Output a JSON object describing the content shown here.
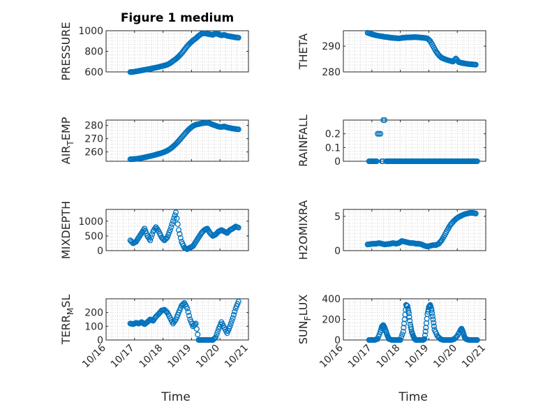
{
  "chart_data": [
    {
      "type": "scatter",
      "title": "Figure 1 medium",
      "ylabel": "PRESSURE",
      "xlabel": "",
      "ylim": [
        600,
        1000
      ],
      "yticks": [
        600,
        800,
        1000
      ],
      "xlim": [
        16,
        21
      ],
      "x": [
        16.85,
        16.95,
        17.05,
        17.15,
        17.25,
        17.35,
        17.45,
        17.55,
        17.65,
        17.75,
        17.85,
        17.95,
        18.05,
        18.15,
        18.25,
        18.35,
        18.45,
        18.55,
        18.65,
        18.75,
        18.85,
        18.95,
        19.05,
        19.15,
        19.25,
        19.35,
        19.45,
        19.55,
        19.65,
        19.75,
        19.85,
        19.95,
        20.05,
        20.15,
        20.25,
        20.35,
        20.45,
        20.55,
        20.65
      ],
      "y": [
        598,
        600,
        605,
        610,
        615,
        620,
        625,
        630,
        636,
        642,
        648,
        655,
        662,
        670,
        685,
        705,
        725,
        750,
        780,
        815,
        850,
        880,
        905,
        925,
        950,
        970,
        975,
        970,
        965,
        960,
        975,
        965,
        955,
        960,
        950,
        945,
        940,
        935,
        932
      ]
    },
    {
      "type": "scatter",
      "title": "",
      "ylabel": "THETA",
      "xlabel": "",
      "ylim": [
        280,
        296
      ],
      "yticks": [
        280,
        290
      ],
      "xlim": [
        16,
        21
      ],
      "x": [
        16.85,
        16.95,
        17.05,
        17.15,
        17.25,
        17.35,
        17.45,
        17.55,
        17.65,
        17.75,
        17.85,
        17.95,
        18.05,
        18.15,
        18.25,
        18.35,
        18.45,
        18.55,
        18.65,
        18.75,
        18.85,
        18.95,
        19.05,
        19.15,
        19.25,
        19.35,
        19.45,
        19.55,
        19.65,
        19.75,
        19.85,
        19.95,
        20.05,
        20.15,
        20.25,
        20.35,
        20.45,
        20.55,
        20.65
      ],
      "y": [
        295.2,
        294.8,
        294.5,
        294.2,
        294.0,
        293.8,
        293.6,
        293.5,
        293.3,
        293.2,
        293.1,
        293.0,
        293.2,
        293.3,
        293.4,
        293.4,
        293.5,
        293.5,
        293.4,
        293.3,
        293.2,
        293.0,
        292.0,
        290.0,
        288.0,
        286.5,
        285.5,
        285.0,
        284.6,
        284.3,
        284.0,
        285.2,
        283.8,
        283.5,
        283.3,
        283.1,
        283.0,
        282.9,
        282.8
      ]
    },
    {
      "type": "scatter",
      "title": "",
      "ylabel": "AIR_TEMP",
      "ylabel_main": "AIR",
      "ylabel_sub": "T",
      "ylabel_rest": "EMP",
      "xlabel": "",
      "ylim": [
        253,
        284
      ],
      "yticks": [
        260,
        270,
        280
      ],
      "xlim": [
        16,
        21
      ],
      "x": [
        16.85,
        16.95,
        17.05,
        17.15,
        17.25,
        17.35,
        17.45,
        17.55,
        17.65,
        17.75,
        17.85,
        17.95,
        18.05,
        18.15,
        18.25,
        18.35,
        18.45,
        18.55,
        18.65,
        18.75,
        18.85,
        18.95,
        19.05,
        19.15,
        19.25,
        19.35,
        19.45,
        19.55,
        19.65,
        19.75,
        19.85,
        19.95,
        20.05,
        20.15,
        20.25,
        20.35,
        20.45,
        20.55,
        20.65
      ],
      "y": [
        254.5,
        254.6,
        254.8,
        255.1,
        255.5,
        255.9,
        256.4,
        256.9,
        257.4,
        258.0,
        258.6,
        259.2,
        260.0,
        261.0,
        262.3,
        264.0,
        266.0,
        268.3,
        270.8,
        273.3,
        275.8,
        277.8,
        279.5,
        280.5,
        281.0,
        281.5,
        281.8,
        282.0,
        281.5,
        280.5,
        279.8,
        279.0,
        278.8,
        279.2,
        278.5,
        278.0,
        277.6,
        277.3,
        277.0
      ]
    },
    {
      "type": "scatter",
      "title": "",
      "ylabel": "RAINFALL",
      "xlabel": "",
      "ylim": [
        0,
        0.3
      ],
      "yticks": [
        0,
        0.1,
        0.2
      ],
      "yticklabels": [
        "0",
        "0.1",
        "0.2"
      ],
      "xlim": [
        16,
        21
      ],
      "x": [
        16.9,
        17.0,
        17.1,
        17.2,
        17.25,
        17.3,
        17.35,
        17.4,
        17.45,
        17.5,
        17.55,
        17.6,
        17.7,
        17.8,
        17.9,
        18.0,
        18.1,
        18.2,
        18.3,
        18.4,
        18.5,
        18.6,
        18.7,
        18.8,
        18.9,
        19.0,
        19.1,
        19.2,
        19.3,
        19.4,
        19.5,
        19.6,
        19.7,
        19.8,
        19.9,
        20.0,
        20.1,
        20.2,
        20.3,
        20.4,
        20.5,
        20.6,
        20.7
      ],
      "y": [
        0,
        0,
        0,
        0.2,
        0.2,
        0.2,
        0,
        0.3,
        0.3,
        0,
        0,
        0,
        0,
        0,
        0,
        0,
        0,
        0,
        0,
        0,
        0,
        0,
        0,
        0,
        0,
        0,
        0,
        0,
        0,
        0,
        0,
        0,
        0,
        0,
        0,
        0,
        0,
        0,
        0,
        0,
        0,
        0,
        0
      ]
    },
    {
      "type": "scatter",
      "title": "",
      "ylabel": "MIXDEPTH",
      "xlabel": "",
      "ylim": [
        0,
        1400
      ],
      "yticks": [
        0,
        500,
        1000
      ],
      "xlim": [
        16,
        21
      ],
      "x": [
        16.85,
        16.95,
        17.05,
        17.15,
        17.25,
        17.35,
        17.45,
        17.55,
        17.65,
        17.75,
        17.85,
        17.95,
        18.05,
        18.15,
        18.25,
        18.35,
        18.45,
        18.55,
        18.65,
        18.75,
        18.85,
        18.95,
        19.05,
        19.15,
        19.25,
        19.35,
        19.45,
        19.55,
        19.65,
        19.75,
        19.85,
        19.95,
        20.05,
        20.15,
        20.25,
        20.35,
        20.45,
        20.55,
        20.65
      ],
      "y": [
        350,
        250,
        300,
        450,
        600,
        750,
        500,
        350,
        650,
        800,
        650,
        450,
        350,
        450,
        700,
        1000,
        1300,
        700,
        300,
        100,
        50,
        100,
        150,
        300,
        450,
        600,
        700,
        750,
        600,
        500,
        550,
        650,
        700,
        650,
        600,
        700,
        750,
        820,
        780
      ]
    },
    {
      "type": "scatter",
      "title": "",
      "ylabel": "H2OMIXRA",
      "xlabel": "",
      "ylim": [
        0,
        6
      ],
      "yticks": [
        0,
        5
      ],
      "xlim": [
        16,
        21
      ],
      "x": [
        16.85,
        16.95,
        17.05,
        17.15,
        17.25,
        17.35,
        17.45,
        17.55,
        17.65,
        17.75,
        17.85,
        17.95,
        18.05,
        18.15,
        18.25,
        18.35,
        18.45,
        18.55,
        18.65,
        18.75,
        18.85,
        18.95,
        19.05,
        19.15,
        19.25,
        19.35,
        19.45,
        19.55,
        19.65,
        19.75,
        19.85,
        19.95,
        20.05,
        20.15,
        20.25,
        20.35,
        20.45,
        20.55,
        20.65
      ],
      "y": [
        0.9,
        0.95,
        1.0,
        1.0,
        1.1,
        1.0,
        0.9,
        0.95,
        1.0,
        1.1,
        1.0,
        1.1,
        1.4,
        1.3,
        1.2,
        1.1,
        1.1,
        1.0,
        1.0,
        0.9,
        0.7,
        0.6,
        0.7,
        0.8,
        0.8,
        1.0,
        1.5,
        2.2,
        3.0,
        3.7,
        4.2,
        4.6,
        4.9,
        5.1,
        5.3,
        5.4,
        5.5,
        5.5,
        5.4
      ]
    },
    {
      "type": "scatter",
      "title": "",
      "ylabel": "TERR_MSL",
      "ylabel_main": "TERR",
      "ylabel_sub": "M",
      "ylabel_rest": "SL",
      "xlabel": "Time",
      "ylim": [
        0,
        300
      ],
      "yticks": [
        0,
        100,
        200
      ],
      "xlim": [
        16,
        21
      ],
      "xticks": [
        16,
        17,
        18,
        19,
        20,
        21
      ],
      "xticklabels": [
        "10/16",
        "10/17",
        "10/18",
        "10/19",
        "10/20",
        "10/21"
      ],
      "x": [
        16.85,
        16.95,
        17.05,
        17.15,
        17.25,
        17.35,
        17.45,
        17.55,
        17.65,
        17.75,
        17.85,
        17.95,
        18.05,
        18.15,
        18.25,
        18.35,
        18.45,
        18.55,
        18.65,
        18.75,
        18.85,
        18.95,
        19.05,
        19.15,
        19.25,
        19.35,
        19.45,
        19.55,
        19.65,
        19.75,
        19.85,
        19.95,
        20.05,
        20.15,
        20.25,
        20.35,
        20.45,
        20.55,
        20.65
      ],
      "y": [
        120,
        115,
        125,
        120,
        130,
        115,
        130,
        150,
        140,
        170,
        190,
        215,
        220,
        200,
        160,
        120,
        150,
        200,
        250,
        270,
        230,
        150,
        100,
        120,
        0,
        0,
        0,
        0,
        0,
        0,
        20,
        80,
        130,
        90,
        50,
        100,
        160,
        230,
        280
      ]
    },
    {
      "type": "scatter",
      "title": "",
      "ylabel": "SUN_FLUX",
      "ylabel_main": "SUN",
      "ylabel_sub": "F",
      "ylabel_rest": "LUX",
      "xlabel": "Time",
      "ylim": [
        0,
        400
      ],
      "yticks": [
        0,
        200,
        400
      ],
      "xlim": [
        16,
        21
      ],
      "xticks": [
        16,
        17,
        18,
        19,
        20,
        21
      ],
      "xticklabels": [
        "10/16",
        "10/17",
        "10/18",
        "10/19",
        "10/20",
        "10/21"
      ],
      "x": [
        16.9,
        17.0,
        17.1,
        17.2,
        17.3,
        17.35,
        17.4,
        17.45,
        17.5,
        17.55,
        17.6,
        17.7,
        17.8,
        17.9,
        18.0,
        18.1,
        18.15,
        18.2,
        18.25,
        18.3,
        18.35,
        18.4,
        18.45,
        18.5,
        18.55,
        18.6,
        18.7,
        18.8,
        18.85,
        18.9,
        18.95,
        19.0,
        19.05,
        19.1,
        19.15,
        19.2,
        19.3,
        19.4,
        19.5,
        19.6,
        19.7,
        19.8,
        19.9,
        20.0,
        20.1,
        20.15,
        20.2,
        20.25,
        20.3,
        20.4,
        20.5,
        20.6,
        20.7
      ],
      "y": [
        0,
        0,
        0,
        10,
        80,
        130,
        145,
        120,
        80,
        40,
        10,
        0,
        0,
        0,
        0,
        80,
        200,
        340,
        330,
        260,
        150,
        80,
        40,
        10,
        0,
        0,
        0,
        0,
        10,
        120,
        250,
        320,
        340,
        290,
        200,
        100,
        40,
        10,
        0,
        0,
        0,
        0,
        10,
        40,
        90,
        110,
        80,
        30,
        10,
        0,
        0,
        0,
        0
      ]
    }
  ]
}
